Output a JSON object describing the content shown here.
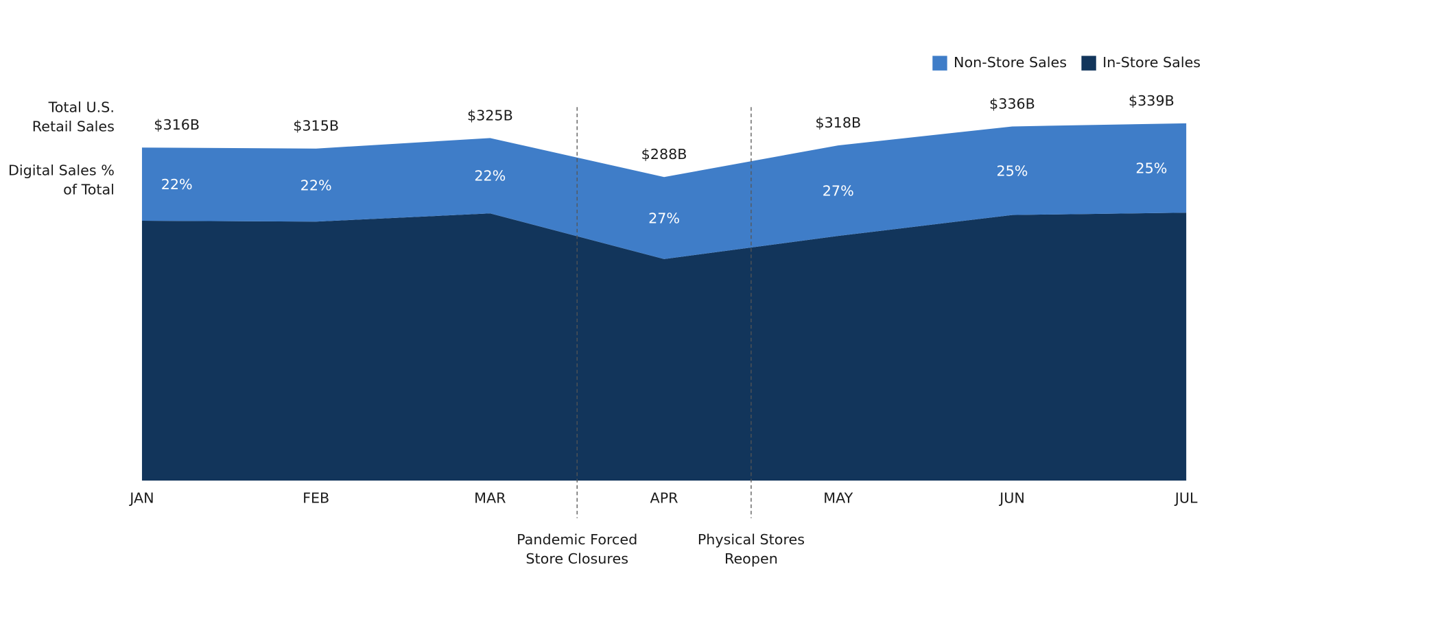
{
  "chart_data": {
    "type": "stacked_area",
    "categories": [
      "JAN",
      "FEB",
      "MAR",
      "APR",
      "MAY",
      "JUN",
      "JUL"
    ],
    "series": [
      {
        "name": "In-Store Sales",
        "color": "#12355b",
        "values": [
          246.5,
          245.7,
          253.5,
          210.2,
          232.1,
          252.0,
          254.2
        ]
      },
      {
        "name": "Non-Store Sales",
        "color": "#3f7dc8",
        "values": [
          69.5,
          69.3,
          71.5,
          77.8,
          85.9,
          84.0,
          84.8
        ]
      }
    ],
    "totals_label": "Total U.S. Retail Sales",
    "totals": [
      316,
      315,
      325,
      288,
      318,
      336,
      339
    ],
    "totals_value_labels": [
      "$316B",
      "$315B",
      "$325B",
      "$288B",
      "$318B",
      "$336B",
      "$339B"
    ],
    "share_label": "Digital Sales % of Total",
    "digital_share": [
      22,
      22,
      22,
      27,
      27,
      25,
      25
    ],
    "digital_share_value_labels": [
      "22%",
      "22%",
      "22%",
      "27%",
      "27%",
      "25%",
      "25%"
    ],
    "annotations": [
      {
        "text": "Pandemic Forced Store Closures",
        "between": [
          "MAR",
          "APR"
        ]
      },
      {
        "text": "Physical Stores Reopen",
        "between": [
          "APR",
          "MAY"
        ]
      }
    ],
    "ylim": [
      0,
      350
    ],
    "legend": "top-right"
  }
}
